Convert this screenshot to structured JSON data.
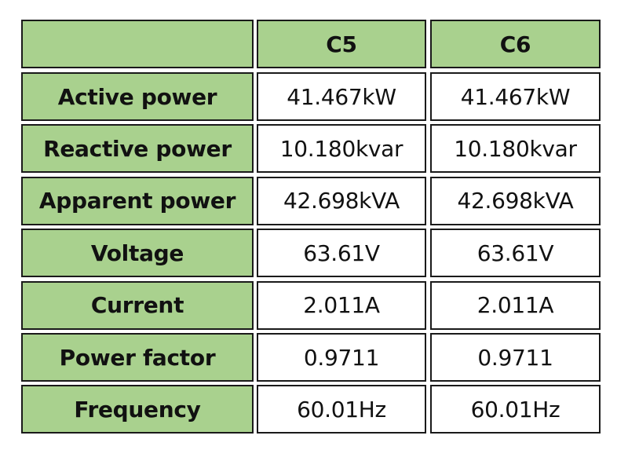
{
  "header": {
    "columns": [
      "C5",
      "C6"
    ]
  },
  "table": {
    "rows": [
      {
        "label": "Active power",
        "values": [
          "41.467kW",
          "41.467kW"
        ]
      },
      {
        "label": "Reactive power",
        "values": [
          "10.180kvar",
          "10.180kvar"
        ]
      },
      {
        "label": "Apparent power",
        "values": [
          "42.698kVA",
          "42.698kVA"
        ]
      },
      {
        "label": "Voltage",
        "values": [
          "63.61V",
          "63.61V"
        ]
      },
      {
        "label": "Current",
        "values": [
          "2.011A",
          "2.011A"
        ]
      },
      {
        "label": "Power factor",
        "values": [
          "0.9711",
          "0.9711"
        ]
      },
      {
        "label": "Frequency",
        "values": [
          "60.01Hz",
          "60.01Hz"
        ]
      }
    ]
  }
}
